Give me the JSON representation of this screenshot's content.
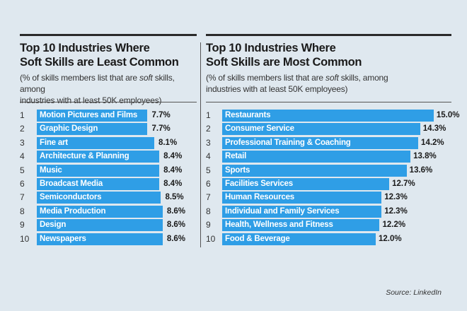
{
  "chart_data": [
    {
      "type": "bar",
      "orientation": "horizontal",
      "title": "Top 10 Industries Where Soft Skills are Least Common",
      "title_lines": [
        "Top 10 Industries Where",
        "Soft Skills are Least Common"
      ],
      "subtitle_lines": [
        "(% of skills members list that are soft skills, among",
        "industries with at least 50K employees)"
      ],
      "ranks": [
        "1",
        "2",
        "3",
        "4",
        "5",
        "6",
        "7",
        "8",
        "9",
        "10"
      ],
      "categories": [
        "Motion Pictures and Films",
        "Graphic Design",
        "Fine art",
        "Architecture & Planning",
        "Music",
        "Broadcast Media",
        "Semiconductors",
        "Media Production",
        "Design",
        "Newspapers"
      ],
      "values": [
        7.7,
        7.7,
        8.1,
        8.4,
        8.4,
        8.4,
        8.5,
        8.6,
        8.6,
        8.6
      ],
      "value_labels": [
        "7.7%",
        "7.7%",
        "8.1%",
        "8.4%",
        "8.4%",
        "8.4%",
        "8.5%",
        "8.6%",
        "8.6%",
        "8.6%"
      ],
      "unit": "%"
    },
    {
      "type": "bar",
      "orientation": "horizontal",
      "title": "Top 10 Industries Where Soft Skills are Most Common",
      "title_lines": [
        "Top 10 Industries Where",
        "Soft Skills are Most Common"
      ],
      "subtitle_lines": [
        "(% of skills members list that are soft skills, among",
        "industries with at least 50K employees)"
      ],
      "ranks": [
        "1",
        "2",
        "3",
        "4",
        "5",
        "6",
        "7",
        "8",
        "9",
        "10"
      ],
      "categories": [
        "Restaurants",
        "Consumer Service",
        "Professional Training & Coaching",
        "Retail",
        "Sports",
        "Facilities Services",
        "Human Resources",
        "Individual and Family Services",
        "Health, Wellness and Fitness",
        "Food & Beverage"
      ],
      "values": [
        15.0,
        14.3,
        14.2,
        13.8,
        13.6,
        12.7,
        12.3,
        12.3,
        12.2,
        12.0
      ],
      "value_labels": [
        "15.0%",
        "14.3%",
        "14.2%",
        "13.8%",
        "13.6%",
        "12.7%",
        "12.3%",
        "12.3%",
        "12.2%",
        "12.0%"
      ],
      "unit": "%"
    }
  ],
  "source": "Source: LinkedIn",
  "colors": {
    "background": "#dfe8ef",
    "bar": "#2f9ee6",
    "bar_text": "#ffffff",
    "text": "#1a1a1a"
  }
}
